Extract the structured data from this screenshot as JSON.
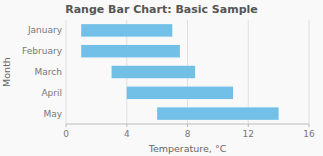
{
  "chart_data": {
    "type": "range_bar",
    "orientation": "horizontal",
    "title": "Range Bar Chart: Basic Sample",
    "xlabel": "Temperature, °C",
    "ylabel": "Month",
    "categories": [
      "January",
      "February",
      "March",
      "April",
      "May"
    ],
    "values": [
      [
        1,
        7
      ],
      [
        1,
        7.5
      ],
      [
        3,
        8.5
      ],
      [
        4,
        11
      ],
      [
        6,
        14
      ]
    ],
    "color": "#72c0e8",
    "xlim": [
      0,
      16
    ],
    "xticks": [
      0,
      4,
      8,
      12,
      16
    ],
    "grid": true
  }
}
